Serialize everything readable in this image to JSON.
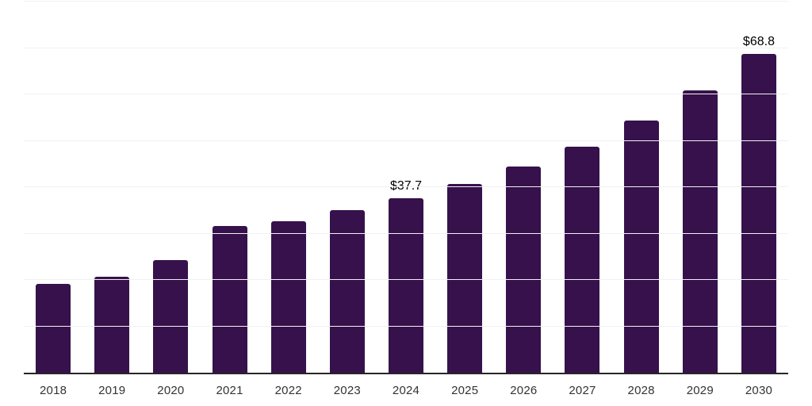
{
  "chart_data": {
    "type": "bar",
    "title": "",
    "xlabel": "",
    "ylabel": "",
    "legend_position": "none",
    "grid": true,
    "y_axis_tick_labels_visible": false,
    "categories": [
      "2018",
      "2019",
      "2020",
      "2021",
      "2022",
      "2023",
      "2024",
      "2025",
      "2026",
      "2027",
      "2028",
      "2029",
      "2030"
    ],
    "values": [
      19.1,
      20.7,
      24.2,
      31.7,
      32.7,
      35.1,
      37.7,
      40.7,
      44.4,
      48.8,
      54.3,
      60.8,
      68.8
    ],
    "data_labels": {
      "2024": "$37.7",
      "2030": "$68.8"
    },
    "ylim": [
      0,
      80
    ],
    "grid_step": 10,
    "colors": {
      "bar": "#36114C",
      "axis_line": "#262626",
      "gridline": "#f1f1f1",
      "tick_label": "#333333",
      "data_label": "#000000",
      "background": "#ffffff"
    }
  }
}
